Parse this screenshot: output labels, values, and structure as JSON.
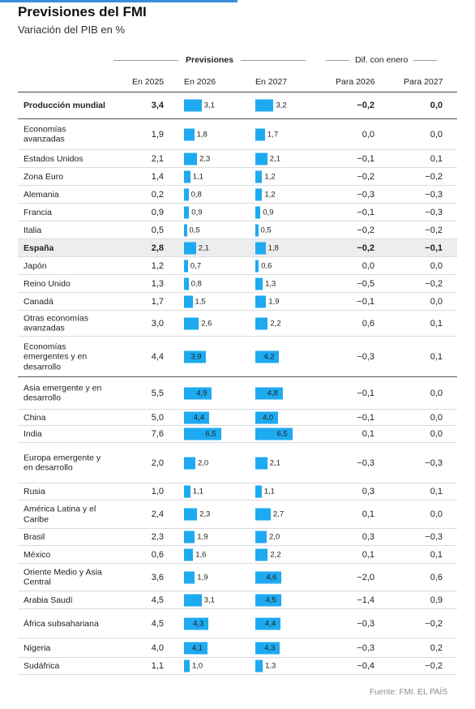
{
  "title": "Previsiones del FMI",
  "subtitle": "Variación del PIB en %",
  "header": {
    "group1": "Previsiones",
    "group2": "Dif. con enero",
    "col_2025": "En 2025",
    "col_2026": "En 2026",
    "col_2027": "En 2027",
    "col_diff2026": "Para 2026",
    "col_diff2027": "Para 2027"
  },
  "source": "Fuente: FMI. EL PAÍS",
  "colors": {
    "bar": "#1eaaf1",
    "highlight_row": "#ebedef",
    "accent_bar": "#3a8ddb"
  },
  "chart_data": {
    "type": "table",
    "title": "Previsiones del FMI",
    "subtitle": "Variación del PIB en %",
    "columns": [
      "En 2025",
      "En 2026",
      "En 2027",
      "Para 2026",
      "Para 2027"
    ],
    "rows": [
      {
        "name": "Producción mundial",
        "y2025": "3,4",
        "y2026": 3.1,
        "y2027": 3.2,
        "d2026": "−0,2",
        "d2027": "0,0",
        "bold": true
      },
      {
        "name": "Economías avanzadas",
        "y2025": "1,9",
        "y2026": 1.8,
        "y2027": 1.7,
        "d2026": "0,0",
        "d2027": "0,0"
      },
      {
        "name": "Estados Unidos",
        "y2025": "2,1",
        "y2026": 2.3,
        "y2027": 2.1,
        "d2026": "−0,1",
        "d2027": "0,1"
      },
      {
        "name": "Zona Euro",
        "y2025": "1,4",
        "y2026": 1.1,
        "y2027": 1.2,
        "d2026": "−0,2",
        "d2027": "−0,2"
      },
      {
        "name": "Alemania",
        "y2025": "0,2",
        "y2026": 0.8,
        "y2027": 1.2,
        "d2026": "−0,3",
        "d2027": "−0,3"
      },
      {
        "name": "Francia",
        "y2025": "0,9",
        "y2026": 0.9,
        "y2027": 0.9,
        "d2026": "−0,1",
        "d2027": "−0,3"
      },
      {
        "name": "Italia",
        "y2025": "0,5",
        "y2026": 0.5,
        "y2027": 0.5,
        "d2026": "−0,2",
        "d2027": "−0,2"
      },
      {
        "name": "España",
        "y2025": "2,8",
        "y2026": 2.1,
        "y2027": 1.8,
        "d2026": "−0,2",
        "d2027": "−0,1",
        "bold": true,
        "highlight": true
      },
      {
        "name": "Japón",
        "y2025": "1,2",
        "y2026": 0.7,
        "y2027": 0.6,
        "d2026": "0,0",
        "d2027": "0,0"
      },
      {
        "name": "Reino Unido",
        "y2025": "1,3",
        "y2026": 0.8,
        "y2027": 1.3,
        "d2026": "−0,5",
        "d2027": "−0,2"
      },
      {
        "name": "Canadá",
        "y2025": "1,7",
        "y2026": 1.5,
        "y2027": 1.9,
        "d2026": "−0,1",
        "d2027": "0,0"
      },
      {
        "name": "Otras economías avanzadas",
        "y2025": "3,0",
        "y2026": 2.6,
        "y2027": 2.2,
        "d2026": "0,6",
        "d2027": "0,1"
      },
      {
        "name": "Economías emergentes y en desarrollo",
        "y2025": "4,4",
        "y2026": 3.9,
        "y2027": 4.2,
        "d2026": "−0,3",
        "d2027": "0,1"
      },
      {
        "name": "Asia emergente y en desarrollo",
        "y2025": "5,5",
        "y2026": 4.9,
        "y2027": 4.8,
        "d2026": "−0,1",
        "d2027": "0,0"
      },
      {
        "name": "China",
        "y2025": "5,0",
        "y2026": 4.4,
        "y2027": 4.0,
        "d2026": "−0,1",
        "d2027": "0,0"
      },
      {
        "name": "India",
        "y2025": "7,6",
        "y2026": 6.5,
        "y2027": 6.5,
        "d2026": "0,1",
        "d2027": "0,0"
      },
      {
        "name": "Europa emergente y en desarrollo",
        "y2025": "2,0",
        "y2026": 2.0,
        "y2027": 2.1,
        "d2026": "−0,3",
        "d2027": "−0,3"
      },
      {
        "name": "Rusia",
        "y2025": "1,0",
        "y2026": 1.1,
        "y2027": 1.1,
        "d2026": "0,3",
        "d2027": "0,1"
      },
      {
        "name": "América Latina y el Caribe",
        "y2025": "2,4",
        "y2026": 2.3,
        "y2027": 2.7,
        "d2026": "0,1",
        "d2027": "0,0"
      },
      {
        "name": "Brasil",
        "y2025": "2,3",
        "y2026": 1.9,
        "y2027": 2.0,
        "d2026": "0,3",
        "d2027": "−0,3"
      },
      {
        "name": "México",
        "y2025": "0,6",
        "y2026": 1.6,
        "y2027": 2.2,
        "d2026": "0,1",
        "d2027": "0,1"
      },
      {
        "name": "Oriente Medio y Asia Central",
        "y2025": "3,6",
        "y2026": 1.9,
        "y2027": 4.6,
        "d2026": "−2,0",
        "d2027": "0,6"
      },
      {
        "name": "Arabia Saudí",
        "y2025": "4,5",
        "y2026": 3.1,
        "y2027": 4.5,
        "d2026": "−1,4",
        "d2027": "0,9"
      },
      {
        "name": "África subsahariana",
        "y2025": "4,5",
        "y2026": 4.3,
        "y2027": 4.4,
        "d2026": "−0,3",
        "d2027": "−0,2"
      },
      {
        "name": "Nigeria",
        "y2025": "4,0",
        "y2026": 4.1,
        "y2027": 4.3,
        "d2026": "−0,3",
        "d2027": "0,2"
      },
      {
        "name": "Sudáfrica",
        "y2025": "1,1",
        "y2026": 1.0,
        "y2027": 1.3,
        "d2026": "−0,4",
        "d2027": "−0,2"
      }
    ]
  }
}
